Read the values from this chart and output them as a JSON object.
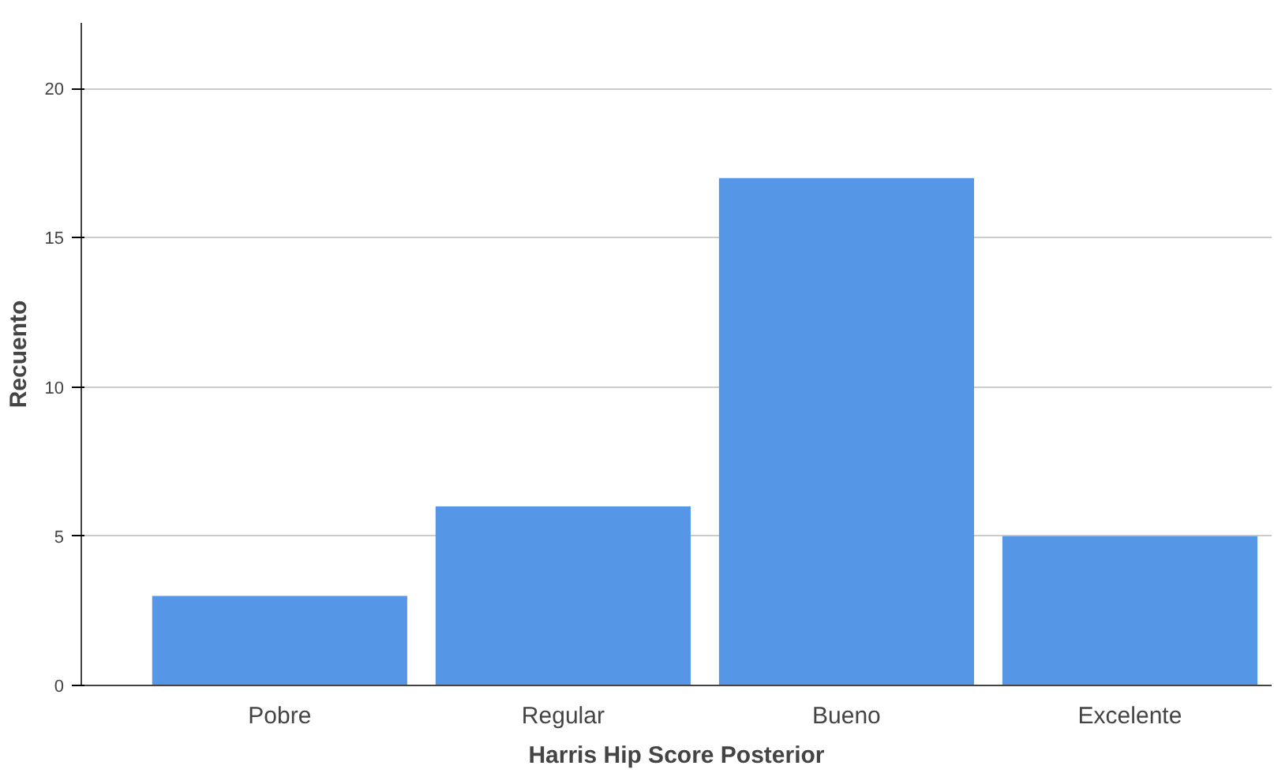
{
  "chart_data": {
    "type": "bar",
    "xlabel": "Harris Hip Score Posterior",
    "ylabel": "Recuento",
    "categories": [
      "Pobre",
      "Regular",
      "Bueno",
      "Excelente"
    ],
    "values": [
      3,
      6,
      17,
      5
    ],
    "color": "#5597e6",
    "ylim": [
      0,
      22.2
    ],
    "yticks": [
      0,
      5,
      10,
      15,
      20
    ],
    "grid": "y"
  }
}
